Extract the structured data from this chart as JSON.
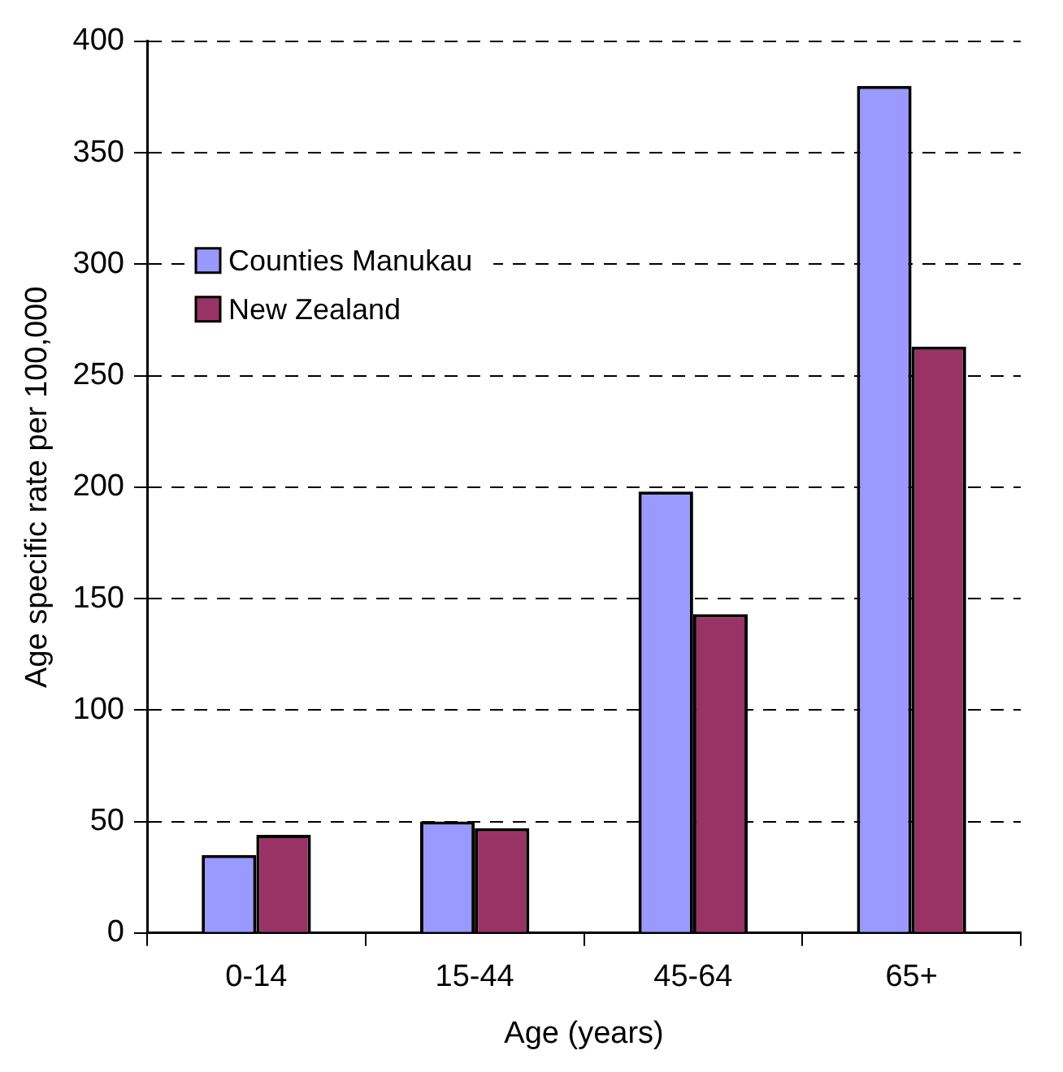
{
  "chart_data": {
    "type": "bar",
    "xlabel": "Age (years)",
    "ylabel": "Age specific rate per 100,000",
    "categories": [
      "0-14",
      "15-44",
      "45-64",
      "65+"
    ],
    "series": [
      {
        "name": "Counties Manukau",
        "color": "#9999ff",
        "values": [
          35,
          50,
          198,
          380
        ]
      },
      {
        "name": "New Zealand",
        "color": "#993366",
        "values": [
          44,
          47,
          143,
          263
        ]
      }
    ],
    "ylim": [
      0,
      400
    ],
    "yticks": [
      0,
      50,
      100,
      150,
      200,
      250,
      300,
      350,
      400
    ],
    "grid": "y",
    "legend": "top left"
  }
}
